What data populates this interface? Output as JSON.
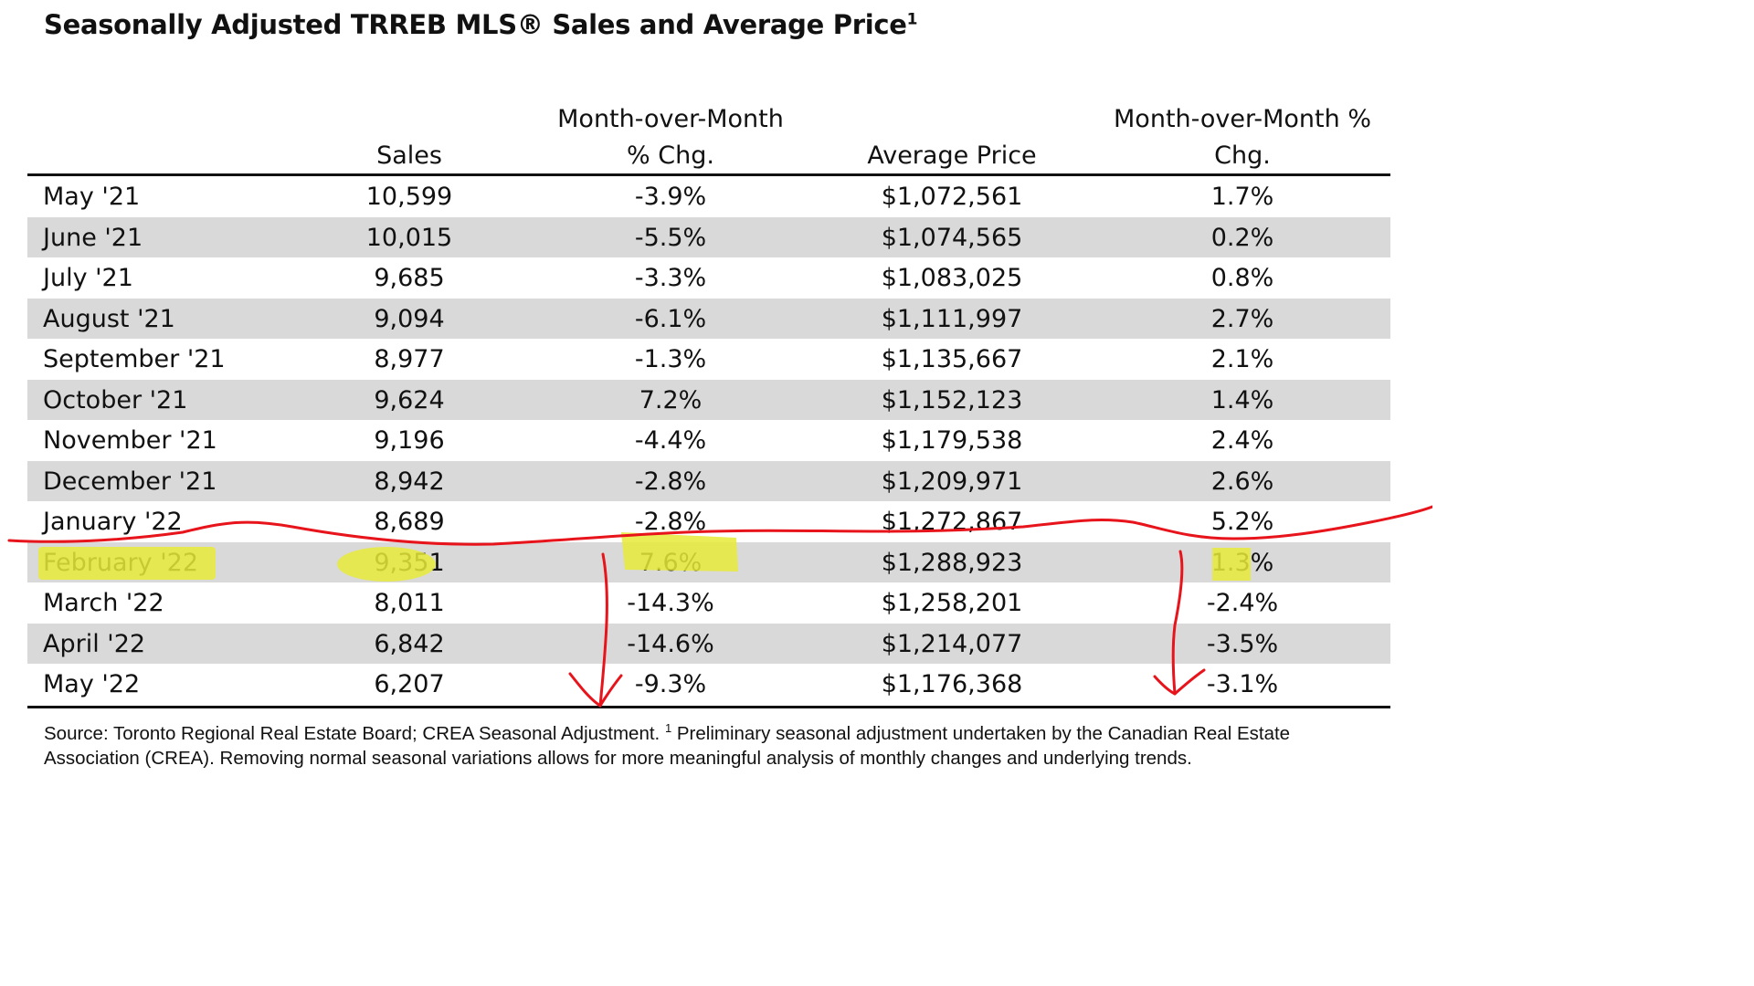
{
  "title": "Seasonally Adjusted TRREB MLS® Sales and Average Price",
  "title_sup": "1",
  "headers": {
    "sales": "Sales",
    "mom1_line1": "Month-over-Month",
    "mom1_line2": "% Chg.",
    "avg_price": "Average Price",
    "mom2_line1": "Month-over-Month %",
    "mom2_line2": "Chg."
  },
  "rows": [
    {
      "month": "May '21",
      "sales": "10,599",
      "mom1": "-3.9%",
      "avg": "$1,072,561",
      "mom2": "1.7%"
    },
    {
      "month": "June '21",
      "sales": "10,015",
      "mom1": "-5.5%",
      "avg": "$1,074,565",
      "mom2": "0.2%"
    },
    {
      "month": "July '21",
      "sales": "9,685",
      "mom1": "-3.3%",
      "avg": "$1,083,025",
      "mom2": "0.8%"
    },
    {
      "month": "August '21",
      "sales": "9,094",
      "mom1": "-6.1%",
      "avg": "$1,111,997",
      "mom2": "2.7%"
    },
    {
      "month": "September '21",
      "sales": "8,977",
      "mom1": "-1.3%",
      "avg": "$1,135,667",
      "mom2": "2.1%"
    },
    {
      "month": "October '21",
      "sales": "9,624",
      "mom1": "7.2%",
      "avg": "$1,152,123",
      "mom2": "1.4%"
    },
    {
      "month": "November '21",
      "sales": "9,196",
      "mom1": "-4.4%",
      "avg": "$1,179,538",
      "mom2": "2.4%"
    },
    {
      "month": "December '21",
      "sales": "8,942",
      "mom1": "-2.8%",
      "avg": "$1,209,971",
      "mom2": "2.6%"
    },
    {
      "month": "January '22",
      "sales": "8,689",
      "mom1": "-2.8%",
      "avg": "$1,272,867",
      "mom2": "5.2%"
    },
    {
      "month": "February '22",
      "sales": "9,351",
      "mom1": "7.6%",
      "avg": "$1,288,923",
      "mom2": "1.3%"
    },
    {
      "month": "March '22",
      "sales": "8,011",
      "mom1": "-14.3%",
      "avg": "$1,258,201",
      "mom2": "-2.4%"
    },
    {
      "month": "April '22",
      "sales": "6,842",
      "mom1": "-14.6%",
      "avg": "$1,214,077",
      "mom2": "-3.5%"
    },
    {
      "month": "May '22",
      "sales": "6,207",
      "mom1": "-9.3%",
      "avg": "$1,176,368",
      "mom2": "-3.1%"
    }
  ],
  "footnote": {
    "source": "Source: Toronto Regional Real Estate Board; CREA Seasonal Adjustment. ",
    "sup": "1",
    "text": " Preliminary seasonal adjustment undertaken by the Canadian Real Estate Association (CREA).  Removing normal seasonal variations allows for more meaningful analysis of monthly changes and underlying trends."
  },
  "colors": {
    "highlight": "#e8ea3a",
    "annotation": "#e8141c",
    "shade": "#d9d9d9"
  }
}
